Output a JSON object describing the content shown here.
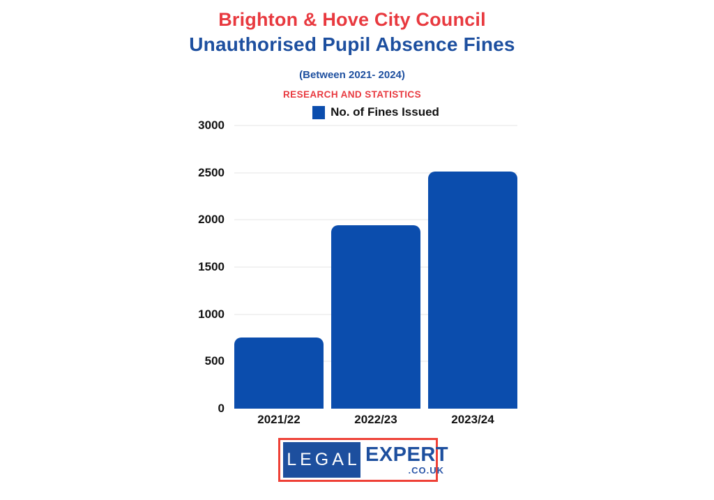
{
  "header": {
    "title": "Brighton & Hove City Council",
    "subtitle": "Unauthorised Pupil Absence Fines",
    "period": "(Between 2021- 2024)",
    "tagline": "RESEARCH AND STATISTICS"
  },
  "chart_data": {
    "type": "bar",
    "title": "Brighton & Hove City Council Unauthorised Pupil Absence Fines (Between 2021- 2024)",
    "categories": [
      "2021/22",
      "2022/23",
      "2023/24"
    ],
    "values": [
      750,
      1940,
      2510
    ],
    "series_label": "No. of Fines Issued",
    "xlabel": "",
    "ylabel": "",
    "ylim": [
      0,
      3000
    ],
    "yticks": [
      0,
      500,
      1000,
      1500,
      2000,
      2500,
      3000
    ],
    "grid": true,
    "legend_position": "top-center",
    "bar_color": "#0b4dad"
  },
  "colors": {
    "title_red": "#e8393f",
    "title_blue": "#1d4f9f",
    "bar_blue": "#0b4dad",
    "gridline": "#f2f2f2",
    "tick_label": "#111111",
    "logo_border_red": "#ee4036",
    "logo_blue": "#1d4f9e"
  },
  "footer": {
    "logo_left": "LEGAL",
    "logo_right": "EXPERT",
    "logo_domain": ".CO.UK"
  }
}
